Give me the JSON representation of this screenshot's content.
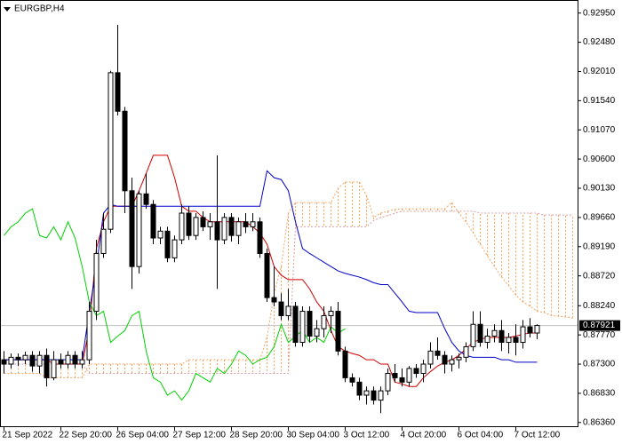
{
  "chart_data": {
    "type": "candlestick",
    "title": "EURGBP,H4",
    "categories": [
      "21 Sep 2022",
      null,
      null,
      null,
      null,
      null,
      null,
      null,
      "22 Sep 20:00",
      null,
      null,
      null,
      null,
      null,
      null,
      null,
      "26 Sep 04:00",
      null,
      null,
      null,
      null,
      null,
      null,
      null,
      "27 Sep 12:00",
      null,
      null,
      null,
      null,
      null,
      null,
      null,
      "28 Sep 20:00",
      null,
      null,
      null,
      null,
      null,
      null,
      null,
      "30 Sep 04:00",
      null,
      null,
      null,
      null,
      null,
      null,
      null,
      "3 Oct 12:00",
      null,
      null,
      null,
      null,
      null,
      null,
      null,
      "4 Oct 20:00",
      null,
      null,
      null,
      null,
      null,
      null,
      null,
      "6 Oct 04:00",
      null,
      null,
      null,
      null,
      null,
      null,
      null,
      "7 Oct 12:00",
      null,
      null,
      null,
      null,
      null,
      null,
      null,
      null
    ],
    "open": [
      0.8737,
      0.873,
      0.8741,
      0.8737,
      0.8744,
      0.8727,
      0.8744,
      0.8708,
      0.8737,
      0.873,
      0.8744,
      0.873,
      0.8737,
      0.8815,
      0.8908,
      0.8947,
      0.9199,
      0.9137,
      0.9009,
      0.8887,
      0.9004,
      0.8987,
      0.8933,
      0.8944,
      0.8901,
      0.893,
      0.8973,
      0.8937,
      0.8966,
      0.8951,
      0.8959,
      0.893,
      0.8966,
      0.8937,
      0.8959,
      0.8951,
      0.8959,
      0.8908,
      0.8837,
      0.883,
      0.8808,
      0.8823,
      0.8765,
      0.8815,
      0.8775,
      0.8787,
      0.8808,
      0.8815,
      0.8751,
      0.8708,
      0.8701,
      0.868,
      0.8687,
      0.8672,
      0.8687,
      0.8715,
      0.8708,
      0.8701,
      0.8723,
      0.8715,
      0.873,
      0.8751,
      0.8744,
      0.873,
      0.8737,
      0.8741,
      0.8758,
      0.8794,
      0.8765,
      0.8775,
      0.8784,
      0.8765,
      0.8773,
      0.8765,
      0.879,
      0.878,
      null,
      null,
      null,
      null,
      null
    ],
    "high": [
      0.8751,
      0.8747,
      0.8747,
      0.875,
      0.8751,
      0.8751,
      0.8755,
      0.8751,
      0.8747,
      0.8751,
      0.8751,
      0.8751,
      0.883,
      0.893,
      0.8973,
      0.9202,
      0.9276,
      0.9144,
      0.903,
      0.9009,
      0.9037,
      0.8994,
      0.8951,
      0.8951,
      0.8937,
      0.8987,
      0.8984,
      0.8973,
      0.8976,
      0.8973,
      0.9066,
      0.8973,
      0.8973,
      0.8966,
      0.8973,
      0.8973,
      0.8966,
      0.8916,
      0.8887,
      0.8844,
      0.8851,
      0.883,
      0.8823,
      0.8823,
      0.8801,
      0.8823,
      0.8823,
      0.883,
      0.8758,
      0.8715,
      0.8708,
      0.8694,
      0.8694,
      0.8694,
      0.8723,
      0.873,
      0.8723,
      0.8727,
      0.873,
      0.8737,
      0.8765,
      0.8773,
      0.8751,
      0.8744,
      0.8747,
      0.8765,
      0.8815,
      0.8815,
      0.8787,
      0.8794,
      0.8801,
      0.878,
      0.8794,
      0.8801,
      0.8804,
      0.8794,
      null,
      null,
      null,
      null,
      null
    ],
    "low": [
      0.8715,
      0.8723,
      0.8727,
      0.873,
      0.8718,
      0.8715,
      0.8694,
      0.8704,
      0.8723,
      0.8723,
      0.8723,
      0.8723,
      0.873,
      0.8801,
      0.8901,
      0.8941,
      0.913,
      0.8973,
      0.8851,
      0.8876,
      0.898,
      0.8923,
      0.8923,
      0.8894,
      0.8894,
      0.8923,
      0.893,
      0.893,
      0.8944,
      0.893,
      0.8851,
      0.8923,
      0.8927,
      0.8923,
      0.8941,
      0.8944,
      0.8901,
      0.883,
      0.8823,
      0.8801,
      0.8801,
      0.8758,
      0.8758,
      0.8765,
      0.8765,
      0.8773,
      0.878,
      0.8744,
      0.8701,
      0.8694,
      0.8672,
      0.8665,
      0.8665,
      0.8651,
      0.868,
      0.8701,
      0.8694,
      0.8694,
      0.8708,
      0.8701,
      0.8723,
      0.8737,
      0.8715,
      0.8718,
      0.8723,
      0.8733,
      0.8751,
      0.8758,
      0.8755,
      0.8765,
      0.8751,
      0.8747,
      0.8744,
      0.8755,
      0.8773,
      0.877,
      null,
      null,
      null,
      null,
      null
    ],
    "close": [
      0.873,
      0.8741,
      0.8737,
      0.8744,
      0.8727,
      0.8744,
      0.8708,
      0.8737,
      0.873,
      0.8744,
      0.873,
      0.8737,
      0.8815,
      0.8908,
      0.8947,
      0.9199,
      0.9137,
      0.9009,
      0.8887,
      0.9004,
      0.8987,
      0.8933,
      0.8944,
      0.8901,
      0.893,
      0.8973,
      0.8937,
      0.8966,
      0.8951,
      0.8959,
      0.893,
      0.8966,
      0.8937,
      0.8959,
      0.8951,
      0.8959,
      0.8908,
      0.8837,
      0.883,
      0.8808,
      0.8823,
      0.8765,
      0.8815,
      0.8775,
      0.8787,
      0.8808,
      0.8815,
      0.8751,
      0.8708,
      0.8701,
      0.868,
      0.8687,
      0.8672,
      0.8687,
      0.8715,
      0.8708,
      0.8701,
      0.8723,
      0.8715,
      0.873,
      0.8751,
      0.8744,
      0.873,
      0.8737,
      0.8741,
      0.8758,
      0.8794,
      0.8765,
      0.8775,
      0.8784,
      0.8765,
      0.8773,
      0.8765,
      0.879,
      0.878,
      0.87921,
      null,
      null,
      null,
      null,
      null
    ],
    "up_color": "#ffffff",
    "down_color": "#000000",
    "lines": [
      {
        "color": "#d00000",
        "values": [
          0.8737,
          0.8737,
          0.8737,
          0.8737,
          0.8737,
          0.8737,
          0.8737,
          0.873,
          0.873,
          0.873,
          0.873,
          0.873,
          0.8787,
          0.8916,
          0.8959,
          0.8984,
          0.8984,
          0.8984,
          0.8984,
          0.9009,
          0.9037,
          0.9066,
          0.9066,
          0.9066,
          0.903,
          0.8984,
          0.8976,
          0.8976,
          0.8966,
          0.8959,
          0.8959,
          0.8959,
          0.8959,
          0.8959,
          0.8959,
          0.8951,
          0.8941,
          0.8923,
          0.8887,
          0.8873,
          0.8866,
          0.8866,
          0.8866,
          0.8851,
          0.883,
          0.8815,
          0.8784,
          0.8758,
          0.8751,
          0.8747,
          0.8744,
          0.8737,
          0.8737,
          0.873,
          0.873,
          0.8701,
          0.8698,
          0.8694,
          0.8694,
          0.8708,
          0.8718,
          0.8727,
          0.8733,
          0.8737,
          0.8744,
          0.8755,
          0.8765,
          0.877,
          0.8773,
          0.8773,
          0.8773,
          0.8773,
          0.8775,
          0.8778,
          0.878,
          0.878,
          null,
          null,
          null,
          null,
          null
        ]
      },
      {
        "color": "#0000c8",
        "values": [
          0.8737,
          0.8737,
          0.8737,
          0.8737,
          0.8737,
          0.8737,
          0.8737,
          0.8737,
          0.8737,
          0.8737,
          0.8737,
          0.8737,
          0.8815,
          0.8887,
          0.8973,
          0.8987,
          0.8984,
          0.8984,
          0.8984,
          0.8984,
          0.8984,
          0.8984,
          0.8984,
          0.8984,
          0.8984,
          0.8984,
          0.8984,
          0.8984,
          0.8984,
          0.8984,
          0.8984,
          0.8984,
          0.8984,
          0.8984,
          0.8984,
          0.8984,
          0.8984,
          0.9041,
          0.903,
          0.9027,
          0.9009,
          0.8959,
          0.8916,
          0.8908,
          0.8901,
          0.8894,
          0.8887,
          0.888,
          0.8876,
          0.8873,
          0.887,
          0.8866,
          0.8861,
          0.8858,
          0.8858,
          0.8844,
          0.883,
          0.8815,
          0.8813,
          0.8813,
          0.8813,
          0.8813,
          0.8787,
          0.8765,
          0.8751,
          0.8744,
          0.8741,
          0.8741,
          0.8741,
          0.8741,
          0.8737,
          0.8737,
          0.8733,
          0.8733,
          0.8733,
          0.8733,
          null,
          null,
          null,
          null,
          null
        ]
      },
      {
        "color": "#00d000",
        "values": [
          0.8937,
          0.8951,
          0.8959,
          0.8973,
          0.898,
          0.8937,
          0.8933,
          0.8951,
          0.893,
          0.8959,
          0.8933,
          0.8887,
          0.883,
          0.8808,
          0.8815,
          0.8765,
          0.8775,
          0.8784,
          0.8808,
          0.8815,
          0.8751,
          0.8708,
          0.8701,
          0.868,
          0.8687,
          0.8672,
          0.8687,
          0.8715,
          0.8708,
          0.8701,
          0.8723,
          0.8715,
          0.873,
          0.8751,
          0.8744,
          0.873,
          0.8737,
          0.8741,
          0.8758,
          0.8794,
          0.8765,
          0.8775,
          0.8784,
          0.8765,
          0.8773,
          0.8765,
          0.879,
          0.878,
          0.8787,
          null,
          null,
          null,
          null,
          null,
          null,
          null,
          null,
          null,
          null,
          null,
          null,
          null,
          null,
          null,
          null,
          null,
          null,
          null,
          null,
          null,
          null,
          null,
          null,
          null,
          null,
          null,
          null,
          null,
          null,
          null,
          null
        ]
      }
    ],
    "cloud": {
      "color": "#f4a460",
      "span_a": [
        0.8715,
        0.8715,
        0.8715,
        0.8715,
        0.8715,
        0.8715,
        0.8708,
        0.8708,
        0.8708,
        0.8708,
        0.8708,
        0.8708,
        0.873,
        0.873,
        0.873,
        0.873,
        0.873,
        0.873,
        0.873,
        0.873,
        0.873,
        0.873,
        0.873,
        0.873,
        0.873,
        0.873,
        0.8737,
        0.8737,
        0.8737,
        0.8737,
        0.8737,
        0.8737,
        0.8737,
        0.8737,
        0.8737,
        0.8737,
        0.8737,
        0.8773,
        0.8844,
        0.8887,
        0.8973,
        0.899,
        0.899,
        0.899,
        0.899,
        0.899,
        0.899,
        0.9013,
        0.9023,
        0.9023,
        0.9023,
        0.9001,
        0.8966,
        0.8973,
        0.8976,
        0.8979,
        0.898,
        0.898,
        0.898,
        0.898,
        0.898,
        0.898,
        0.898,
        0.899,
        0.8973,
        0.8959,
        0.8941,
        0.8923,
        0.8904,
        0.8887,
        0.887,
        0.8856,
        0.8841,
        0.883,
        0.8823,
        0.8815,
        0.8813,
        0.8808,
        0.8807,
        0.8806,
        0.8804
      ],
      "span_b": [
        0.873,
        0.873,
        0.873,
        0.873,
        0.873,
        0.873,
        0.873,
        0.873,
        0.873,
        0.873,
        0.873,
        0.873,
        0.8715,
        0.8715,
        0.8715,
        0.8715,
        0.8715,
        0.8715,
        0.8715,
        0.8715,
        0.8715,
        0.8715,
        0.8715,
        0.8715,
        0.8715,
        0.8715,
        0.8715,
        0.8715,
        0.8715,
        0.8715,
        0.8715,
        0.8715,
        0.8715,
        0.8715,
        0.8715,
        0.8715,
        0.8715,
        0.8715,
        0.8715,
        0.8715,
        0.8715,
        0.8951,
        0.8951,
        0.8951,
        0.8951,
        0.8951,
        0.8951,
        0.8951,
        0.8951,
        0.8951,
        0.8951,
        0.8951,
        0.8961,
        0.8966,
        0.8969,
        0.8973,
        0.8976,
        0.8976,
        0.8976,
        0.8976,
        0.8976,
        0.8976,
        0.8976,
        0.8976,
        0.8976,
        0.8976,
        0.8976,
        0.8973,
        0.8973,
        0.8973,
        0.8973,
        0.8973,
        0.8973,
        0.8973,
        0.8973,
        0.8973,
        0.897,
        0.897,
        0.897,
        0.897,
        0.897
      ]
    },
    "last_price": 0.87921,
    "ylim": [
      0.863,
      0.9316
    ],
    "yticks": [
      {
        "value": 0.9295,
        "label": "0.92950"
      },
      {
        "value": 0.9248,
        "label": "0.92480"
      },
      {
        "value": 0.9201,
        "label": "0.92010"
      },
      {
        "value": 0.9154,
        "label": "0.91540"
      },
      {
        "value": 0.9107,
        "label": "0.91070"
      },
      {
        "value": 0.906,
        "label": "0.90600"
      },
      {
        "value": 0.9013,
        "label": "0.90130"
      },
      {
        "value": 0.8966,
        "label": "0.89660"
      },
      {
        "value": 0.8919,
        "label": "0.89190"
      },
      {
        "value": 0.8872,
        "label": "0.88720"
      },
      {
        "value": 0.8824,
        "label": "0.88240"
      },
      {
        "value": 0.8777,
        "label": "0.87770"
      },
      {
        "value": 0.873,
        "label": "0.87300"
      },
      {
        "value": 0.8683,
        "label": "0.86830"
      },
      {
        "value": 0.8636,
        "label": "0.86360"
      }
    ]
  }
}
